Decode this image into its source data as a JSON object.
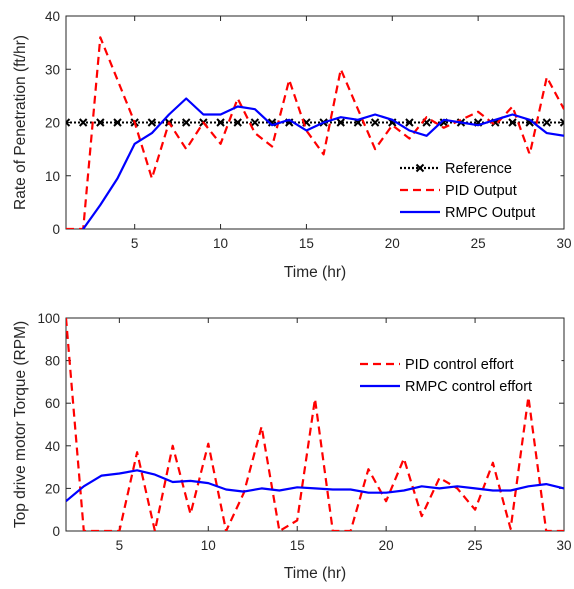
{
  "chart_data": [
    {
      "type": "line",
      "xlabel": "Time (hr)",
      "ylabel": "Rate of Penetration (ft/hr)",
      "xlim": [
        1,
        30
      ],
      "ylim": [
        0,
        40
      ],
      "xticks": [
        5,
        10,
        15,
        20,
        25,
        30
      ],
      "yticks": [
        0,
        10,
        20,
        30,
        40
      ],
      "grid": false,
      "legend_position": "bottom-right",
      "series": [
        {
          "name": "Reference",
          "color": "#000000",
          "style": "dotted-x-markers",
          "x": [
            1,
            2,
            3,
            4,
            5,
            6,
            7,
            8,
            9,
            10,
            11,
            12,
            13,
            14,
            15,
            16,
            17,
            18,
            19,
            20,
            21,
            22,
            23,
            24,
            25,
            26,
            27,
            28,
            29,
            30
          ],
          "y": [
            20,
            20,
            20,
            20,
            20,
            20,
            20,
            20,
            20,
            20,
            20,
            20,
            20,
            20,
            20,
            20,
            20,
            20,
            20,
            20,
            20,
            20,
            20,
            20,
            20,
            20,
            20,
            20,
            20,
            20
          ]
        },
        {
          "name": "PID Output",
          "color": "#ff0000",
          "style": "dashed",
          "x": [
            1,
            2,
            3,
            4,
            5,
            6,
            7,
            8,
            9,
            10,
            11,
            12,
            13,
            14,
            15,
            16,
            17,
            18,
            19,
            20,
            21,
            22,
            23,
            24,
            25,
            26,
            27,
            28,
            29,
            30
          ],
          "y": [
            0,
            0,
            36,
            28,
            20,
            9.5,
            20,
            15,
            20,
            16,
            24.5,
            18,
            15.5,
            28,
            18.5,
            14,
            30,
            22.5,
            15,
            19.5,
            17,
            21,
            19,
            20.5,
            22,
            19.5,
            23,
            14,
            28.5,
            22.5
          ]
        },
        {
          "name": "RMPC Output",
          "color": "#0000ff",
          "style": "solid",
          "x": [
            1,
            2,
            3,
            4,
            5,
            6,
            7,
            8,
            9,
            10,
            11,
            12,
            13,
            14,
            15,
            16,
            17,
            18,
            19,
            20,
            21,
            22,
            23,
            24,
            25,
            26,
            27,
            28,
            29,
            30
          ],
          "y": [
            -5,
            0,
            4.5,
            9.5,
            16,
            18,
            21.5,
            24.5,
            21.5,
            21.5,
            23,
            22.5,
            19.5,
            20.5,
            18.5,
            20,
            21,
            20.5,
            21.5,
            20.5,
            18.5,
            17.5,
            20.5,
            20,
            19.5,
            20.5,
            21.5,
            20.5,
            18,
            17.5
          ]
        }
      ]
    },
    {
      "type": "line",
      "xlabel": "Time (hr)",
      "ylabel": "Top drive motor Torque (RPM)",
      "xlim": [
        2,
        30
      ],
      "ylim": [
        0,
        100
      ],
      "xticks": [
        5,
        10,
        15,
        20,
        25,
        30
      ],
      "yticks": [
        0,
        20,
        40,
        60,
        80,
        100
      ],
      "grid": false,
      "legend_position": "top-right",
      "series": [
        {
          "name": "PID control effort",
          "color": "#ff0000",
          "style": "dashed",
          "x": [
            2,
            3,
            4,
            5,
            6,
            7,
            8,
            9,
            10,
            11,
            12,
            13,
            14,
            15,
            16,
            17,
            18,
            19,
            20,
            21,
            22,
            23,
            24,
            25,
            26,
            27,
            28,
            29,
            30
          ],
          "y": [
            100,
            0,
            0,
            0,
            37,
            0,
            40,
            8,
            41,
            0,
            18,
            49,
            0,
            5,
            62,
            0,
            0,
            29,
            14,
            34,
            7,
            25,
            20,
            10,
            32,
            1,
            63,
            0,
            0
          ]
        },
        {
          "name": "RMPC control effort",
          "color": "#0000ff",
          "style": "solid",
          "x": [
            2,
            3,
            4,
            5,
            6,
            7,
            8,
            9,
            10,
            11,
            12,
            13,
            14,
            15,
            16,
            17,
            18,
            19,
            20,
            21,
            22,
            23,
            24,
            25,
            26,
            27,
            28,
            29,
            30
          ],
          "y": [
            14,
            21,
            26,
            27,
            28.5,
            26.5,
            23,
            23.5,
            22.5,
            19.5,
            18.5,
            20,
            19,
            20.5,
            20,
            19.5,
            19.5,
            18,
            18,
            19,
            21,
            20,
            21,
            20,
            19,
            19,
            21,
            22,
            20
          ]
        }
      ]
    }
  ]
}
